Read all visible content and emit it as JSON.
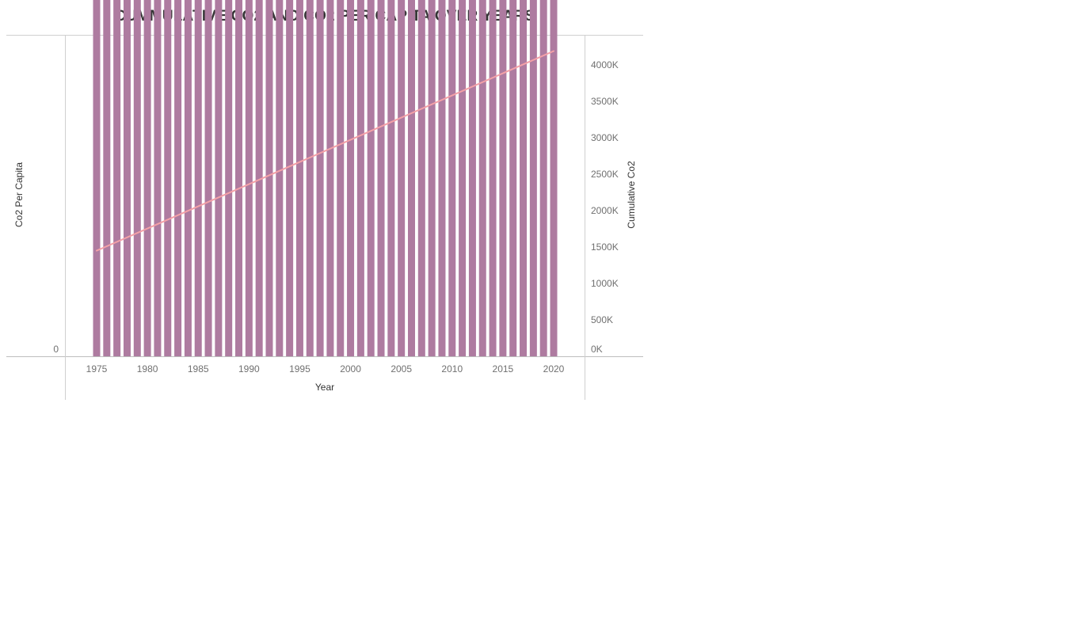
{
  "chart_data": {
    "type": "bar",
    "title": "CUMMULATIVE CO2 AND CO2 PER CAPITA OVER YEARS",
    "xlabel": "Year",
    "ylabel": "Co2 Per Capita",
    "y2label": "Cumulative Co2",
    "ylim": [
      0,
      1560
    ],
    "y2lim": [
      0,
      4300
    ],
    "ylim_ticks": [
      0,
      200,
      400,
      600,
      800,
      1000,
      1200,
      1400
    ],
    "y2_ticks": [
      0,
      500,
      1000,
      1500,
      2000,
      2500,
      3000,
      3500,
      4000
    ],
    "y2_tick_labels": [
      "0K",
      "500K",
      "1000K",
      "1500K",
      "2000K",
      "2500K",
      "3000K",
      "3500K",
      "4000K"
    ],
    "x_ticks": [
      1975,
      1980,
      1985,
      1990,
      1995,
      2000,
      2005,
      2010,
      2015,
      2020
    ],
    "x_tick_labels": [
      "1975",
      "1980",
      "1985",
      "1990",
      "1995",
      "2000",
      "2005",
      "2010",
      "2015",
      "2020"
    ],
    "categories": [
      1975,
      1976,
      1977,
      1978,
      1979,
      1980,
      1981,
      1982,
      1983,
      1984,
      1985,
      1986,
      1987,
      1988,
      1989,
      1990,
      1991,
      1992,
      1993,
      1994,
      1995,
      1996,
      1997,
      1998,
      1999,
      2000,
      2001,
      2002,
      2003,
      2004,
      2005,
      2006,
      2007,
      2008,
      2009,
      2010,
      2011,
      2012,
      2013,
      2014,
      2015,
      2016,
      2017,
      2018,
      2019,
      2020
    ],
    "series": [
      {
        "name": "Co2 Per Capita",
        "type": "bar",
        "axis": "left",
        "color": "#ae7ba0",
        "values": [
          1290,
          1520,
          1335,
          1305,
          1325,
          1298,
          1200,
          1188,
          1062,
          1215,
          1270,
          1068,
          1062,
          1095,
          1152,
          1168,
          1132,
          1115,
          1150,
          1132,
          1118,
          1128,
          1138,
          1065,
          1078,
          1172,
          1182,
          1190,
          1222,
          1238,
          1240,
          1255,
          1270,
          1255,
          1200,
          1205,
          1205,
          1202,
          1180,
          1180,
          1168,
          1148,
          1148,
          1145,
          1158,
          1072
        ]
      },
      {
        "name": "Cumulative Co2",
        "type": "line",
        "axis": "right",
        "color": "#f4a0a7",
        "x": [
          1975,
          2020
        ],
        "values": [
          1450,
          4190
        ]
      }
    ]
  }
}
